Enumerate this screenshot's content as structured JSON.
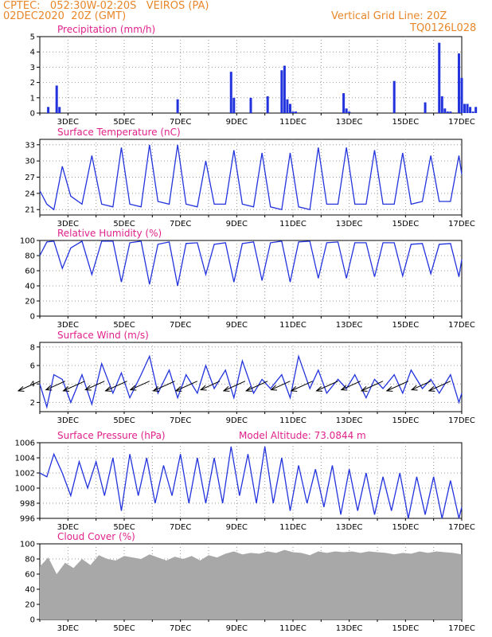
{
  "header": {
    "line1": "CPTEC:   052:30W-02:20S   VEIROS (PA)",
    "line2": "02DEC2020  20Z (GMT)",
    "right1": "Vertical Grid Line: 20Z",
    "right2": "TQ0126L028"
  },
  "colors": {
    "header": "#e8872a",
    "title": "#e0218a",
    "line": "#2233dd",
    "cloud": "#a8a8a8"
  },
  "chart_data": [
    {
      "type": "bar",
      "title": "Precipitation (mm/h)",
      "yticks": [
        0,
        1,
        2,
        3,
        4,
        5
      ],
      "ylim": [
        0,
        5
      ],
      "xticks": [
        "3DEC",
        "5DEC",
        "7DEC",
        "9DEC",
        "11DEC",
        "13DEC",
        "15DEC",
        "17DEC"
      ],
      "x": [
        0.3,
        0.6,
        0.7,
        4.9,
        6.8,
        6.9,
        7.5,
        8.1,
        8.6,
        8.7,
        8.8,
        8.9,
        9.0,
        9.1,
        10.8,
        10.9,
        11.0,
        12.6,
        13.7,
        14.2,
        14.3,
        14.4,
        14.5,
        14.6,
        14.9,
        15.0,
        15.1,
        15.2,
        15.3,
        15.4,
        15.5
      ],
      "values": [
        0.4,
        1.8,
        0.4,
        0.9,
        2.7,
        1.0,
        1.0,
        1.1,
        2.8,
        3.1,
        0.9,
        0.6,
        0.1,
        0.1,
        1.3,
        0.3,
        0.1,
        2.1,
        0.7,
        4.6,
        1.1,
        0.3,
        0.1,
        0.1,
        3.9,
        2.3,
        0.6,
        0.6,
        0.4,
        0.1,
        0.4
      ]
    },
    {
      "type": "line",
      "title": "Surface Temperature (nC)",
      "yticks": [
        21,
        24,
        27,
        30,
        33
      ],
      "ylim": [
        20,
        34
      ],
      "xticks": [
        "3DEC",
        "5DEC",
        "7DEC",
        "9DEC",
        "11DEC",
        "13DEC",
        "15DEC",
        "17DEC"
      ],
      "x": [
        0.0,
        0.25,
        0.5,
        0.8,
        1.1,
        1.5,
        1.85,
        2.2,
        2.6,
        2.9,
        3.2,
        3.6,
        3.9,
        4.2,
        4.6,
        4.9,
        5.2,
        5.6,
        5.9,
        6.2,
        6.6,
        6.9,
        7.2,
        7.6,
        7.9,
        8.2,
        8.6,
        8.9,
        9.2,
        9.6,
        9.9,
        10.2,
        10.6,
        10.9,
        11.2,
        11.6,
        11.9,
        12.2,
        12.6,
        12.9,
        13.2,
        13.6,
        13.9,
        14.2,
        14.6,
        14.9,
        15.0
      ],
      "values": [
        24.5,
        22.0,
        21.0,
        29.0,
        23.5,
        22.0,
        31.0,
        22.0,
        21.5,
        32.5,
        22.0,
        21.5,
        33.0,
        22.5,
        22.0,
        33.0,
        22.0,
        21.5,
        30.0,
        22.0,
        22.0,
        32.0,
        22.0,
        21.5,
        31.5,
        21.5,
        21.0,
        31.5,
        21.5,
        21.0,
        32.5,
        22.0,
        22.0,
        32.5,
        22.0,
        22.0,
        32.0,
        22.0,
        22.0,
        31.5,
        22.0,
        22.5,
        31.0,
        22.5,
        22.5,
        31.0,
        27.5
      ]
    },
    {
      "type": "line",
      "title": "Relative Humidity (%)",
      "yticks": [
        0,
        20,
        40,
        60,
        80,
        100
      ],
      "ylim": [
        0,
        100
      ],
      "xticks": [
        "3DEC",
        "5DEC",
        "7DEC",
        "9DEC",
        "11DEC",
        "13DEC",
        "15DEC",
        "17DEC"
      ],
      "x": [
        0.0,
        0.25,
        0.5,
        0.8,
        1.1,
        1.5,
        1.85,
        2.2,
        2.6,
        2.9,
        3.2,
        3.6,
        3.9,
        4.2,
        4.6,
        4.9,
        5.2,
        5.6,
        5.9,
        6.2,
        6.6,
        6.9,
        7.2,
        7.6,
        7.9,
        8.2,
        8.6,
        8.9,
        9.2,
        9.6,
        9.9,
        10.2,
        10.6,
        10.9,
        11.2,
        11.6,
        11.9,
        12.2,
        12.6,
        12.9,
        13.2,
        13.6,
        13.9,
        14.2,
        14.6,
        14.9,
        15.0
      ],
      "values": [
        80,
        98,
        99,
        63,
        90,
        99,
        55,
        99,
        99,
        45,
        97,
        99,
        42,
        95,
        98,
        40,
        96,
        97,
        55,
        95,
        97,
        45,
        96,
        98,
        47,
        97,
        99,
        45,
        98,
        99,
        50,
        97,
        98,
        50,
        97,
        97,
        52,
        97,
        97,
        53,
        95,
        96,
        56,
        95,
        96,
        52,
        75
      ]
    },
    {
      "type": "line",
      "title": "Surface Wind (m/s)",
      "yticks": [
        2,
        4,
        6,
        8
      ],
      "ylim": [
        1,
        8.5
      ],
      "xticks": [
        "3DEC",
        "5DEC",
        "7DEC",
        "9DEC",
        "11DEC",
        "13DEC",
        "15DEC",
        "17DEC"
      ],
      "x": [
        0.0,
        0.25,
        0.5,
        0.8,
        1.1,
        1.5,
        1.85,
        2.2,
        2.6,
        2.9,
        3.2,
        3.6,
        3.9,
        4.2,
        4.6,
        4.9,
        5.2,
        5.6,
        5.9,
        6.2,
        6.6,
        6.9,
        7.2,
        7.6,
        7.9,
        8.2,
        8.6,
        8.9,
        9.2,
        9.6,
        9.9,
        10.2,
        10.6,
        10.9,
        11.2,
        11.6,
        11.9,
        12.2,
        12.6,
        12.9,
        13.2,
        13.6,
        13.9,
        14.2,
        14.6,
        14.9,
        15.0
      ],
      "values": [
        4.0,
        1.5,
        5.0,
        4.5,
        2.0,
        5.0,
        1.8,
        6.2,
        3.0,
        5.2,
        2.5,
        5.0,
        7.0,
        3.0,
        5.5,
        2.5,
        5.0,
        3.0,
        6.0,
        3.5,
        5.5,
        2.5,
        6.5,
        3.0,
        4.5,
        3.5,
        5.0,
        2.5,
        7.0,
        3.5,
        5.5,
        3.0,
        4.5,
        3.5,
        5.0,
        2.5,
        4.5,
        3.5,
        5.0,
        3.0,
        5.5,
        3.5,
        4.5,
        3.0,
        5.0,
        2.0,
        3.0
      ],
      "vectors_x": [
        0.0,
        0.9,
        1.6,
        2.3,
        3.1,
        3.9,
        4.8,
        5.6,
        6.4,
        7.3,
        8.1,
        8.9,
        9.7,
        10.6,
        11.4,
        12.2,
        13.1,
        13.9,
        14.6
      ],
      "vectors_len": [
        0.9,
        0.8,
        0.9,
        0.8,
        0.9,
        0.8,
        0.9,
        0.9,
        0.8,
        0.9,
        0.9,
        0.8,
        0.9,
        0.9,
        0.8,
        0.9,
        0.9,
        0.8,
        0.9
      ]
    },
    {
      "type": "line",
      "title": "Surface Pressure (hPa)",
      "note": "Model Altitude: 73.0844 m",
      "yticks": [
        996,
        998,
        1000,
        1002,
        1004,
        1006
      ],
      "ylim": [
        996,
        1006
      ],
      "xticks": [
        "3DEC",
        "5DEC",
        "7DEC",
        "9DEC",
        "11DEC",
        "13DEC",
        "15DEC",
        "17DEC"
      ],
      "x": [
        0.0,
        0.25,
        0.5,
        0.8,
        1.1,
        1.4,
        1.7,
        2.0,
        2.3,
        2.6,
        2.9,
        3.2,
        3.5,
        3.8,
        4.1,
        4.4,
        4.7,
        5.0,
        5.3,
        5.6,
        5.9,
        6.2,
        6.5,
        6.8,
        7.1,
        7.4,
        7.7,
        8.0,
        8.3,
        8.6,
        8.9,
        9.2,
        9.5,
        9.8,
        10.1,
        10.4,
        10.7,
        11.0,
        11.3,
        11.6,
        11.9,
        12.2,
        12.5,
        12.8,
        13.1,
        13.4,
        13.7,
        14.0,
        14.3,
        14.6,
        14.9,
        15.0
      ],
      "values": [
        1002,
        1001.5,
        1004.5,
        1002,
        999,
        1003.5,
        1000,
        1003.5,
        999,
        1004,
        997,
        1004.5,
        999,
        1004,
        998,
        1003,
        999,
        1004.5,
        998,
        1004,
        998,
        1004,
        998,
        1005.5,
        999,
        1004.5,
        998,
        1005.5,
        998,
        1004,
        997,
        1003,
        998,
        1002.5,
        997.5,
        1003,
        996.5,
        1002.5,
        997,
        1002,
        996.5,
        1001.5,
        997,
        1002,
        996,
        1001.5,
        996.5,
        1001.5,
        996,
        1001,
        996,
        997.5
      ]
    },
    {
      "type": "area",
      "title": "Cloud Cover (%)",
      "yticks": [
        0,
        20,
        40,
        60,
        80,
        100
      ],
      "ylim": [
        0,
        100
      ],
      "xticks": [
        "3DEC",
        "5DEC",
        "7DEC",
        "9DEC",
        "11DEC",
        "13DEC",
        "15DEC",
        "17DEC"
      ],
      "x": [
        0.0,
        0.3,
        0.6,
        0.9,
        1.2,
        1.5,
        1.8,
        2.1,
        2.4,
        2.7,
        3.0,
        3.3,
        3.6,
        3.9,
        4.2,
        4.5,
        4.8,
        5.1,
        5.4,
        5.7,
        6.0,
        6.3,
        6.6,
        6.9,
        7.2,
        7.5,
        7.8,
        8.1,
        8.4,
        8.7,
        9.0,
        9.3,
        9.6,
        9.9,
        10.2,
        10.5,
        10.8,
        11.1,
        11.4,
        11.7,
        12.0,
        12.3,
        12.6,
        12.9,
        13.2,
        13.5,
        13.8,
        14.1,
        14.4,
        14.7,
        15.0
      ],
      "values": [
        70,
        82,
        60,
        75,
        68,
        80,
        72,
        85,
        80,
        78,
        84,
        82,
        80,
        86,
        82,
        78,
        83,
        80,
        84,
        78,
        85,
        82,
        87,
        90,
        86,
        88,
        87,
        90,
        88,
        92,
        89,
        88,
        85,
        90,
        88,
        90,
        89,
        90,
        88,
        90,
        89,
        88,
        86,
        88,
        87,
        90,
        88,
        90,
        89,
        88,
        86
      ]
    }
  ]
}
